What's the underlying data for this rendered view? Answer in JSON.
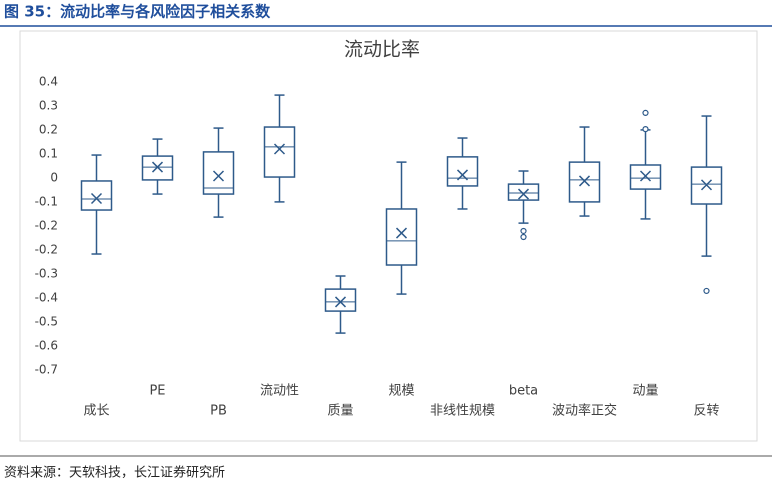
{
  "header": {
    "title": "图 35：流动比率与各风险因子相关系数"
  },
  "chart_data": {
    "type": "box",
    "title": "流动比率",
    "color": "#2e5a8a",
    "grid": false,
    "categories": [
      "成长",
      "PE",
      "PB",
      "流动性",
      "质量",
      "规模",
      "非线性规模",
      "beta",
      "波动率正交",
      "动量",
      "反转"
    ],
    "boxes": [
      {
        "min": -0.257,
        "q1": -0.089,
        "median": -0.047,
        "q3": 0.022,
        "max": 0.121,
        "mean": -0.045,
        "outliers": []
      },
      {
        "min": -0.028,
        "q1": 0.026,
        "median": 0.075,
        "q3": 0.117,
        "max": 0.182,
        "mean": 0.075,
        "outliers": []
      },
      {
        "min": -0.116,
        "q1": -0.028,
        "median": -0.005,
        "q3": 0.133,
        "max": 0.224,
        "mean": 0.041,
        "outliers": []
      },
      {
        "min": -0.058,
        "q1": 0.037,
        "median": 0.152,
        "q3": 0.228,
        "max": 0.35,
        "mean": 0.144,
        "outliers": []
      },
      {
        "min": -0.559,
        "q1": -0.475,
        "median": -0.44,
        "q3": -0.391,
        "max": -0.341,
        "mean": -0.44,
        "outliers": []
      },
      {
        "min": -0.41,
        "q1": -0.299,
        "median": -0.207,
        "q3": -0.085,
        "max": 0.094,
        "mean": -0.177,
        "outliers": []
      },
      {
        "min": -0.085,
        "q1": 0.003,
        "median": 0.033,
        "q3": 0.114,
        "max": 0.186,
        "mean": 0.045,
        "outliers": []
      },
      {
        "min": -0.139,
        "q1": -0.051,
        "median": -0.024,
        "q3": 0.01,
        "max": 0.06,
        "mean": -0.028,
        "outliers": [
          -0.169,
          -0.192
        ]
      },
      {
        "min": -0.112,
        "q1": -0.058,
        "median": 0.026,
        "q3": 0.094,
        "max": 0.228,
        "mean": 0.022,
        "outliers": []
      },
      {
        "min": -0.123,
        "q1": -0.009,
        "median": 0.033,
        "q3": 0.083,
        "max": 0.217,
        "mean": 0.041,
        "outliers": [
          0.282,
          0.22
        ]
      },
      {
        "min": -0.265,
        "q1": -0.066,
        "median": 0.01,
        "q3": 0.075,
        "max": 0.27,
        "mean": 0.007,
        "outliers": [
          -0.398
        ]
      }
    ],
    "ylim": [
      -0.7,
      0.4
    ],
    "yticks": [
      0.4,
      {
        "value": 0.3083,
        "label": "0.3"
      },
      {
        "value": 0.2167,
        "label": "0.2"
      },
      {
        "value": 0.125,
        "label": "0.1"
      },
      {
        "value": 0.0333,
        "label": "0"
      },
      {
        "value": -0.0583,
        "label": "-0.1"
      },
      {
        "value": -0.15,
        "label": "-0.2"
      },
      {
        "value": -0.2417,
        "label": "-0.2"
      },
      {
        "value": -0.3333,
        "label": "-0.3"
      },
      {
        "value": -0.425,
        "label": "-0.4"
      },
      {
        "value": -0.5167,
        "label": "-0.5"
      },
      {
        "value": -0.6083,
        "label": "-0.6"
      },
      -0.7
    ]
  },
  "footer": {
    "source": "资料来源：天软科技，长江证券研究所"
  }
}
